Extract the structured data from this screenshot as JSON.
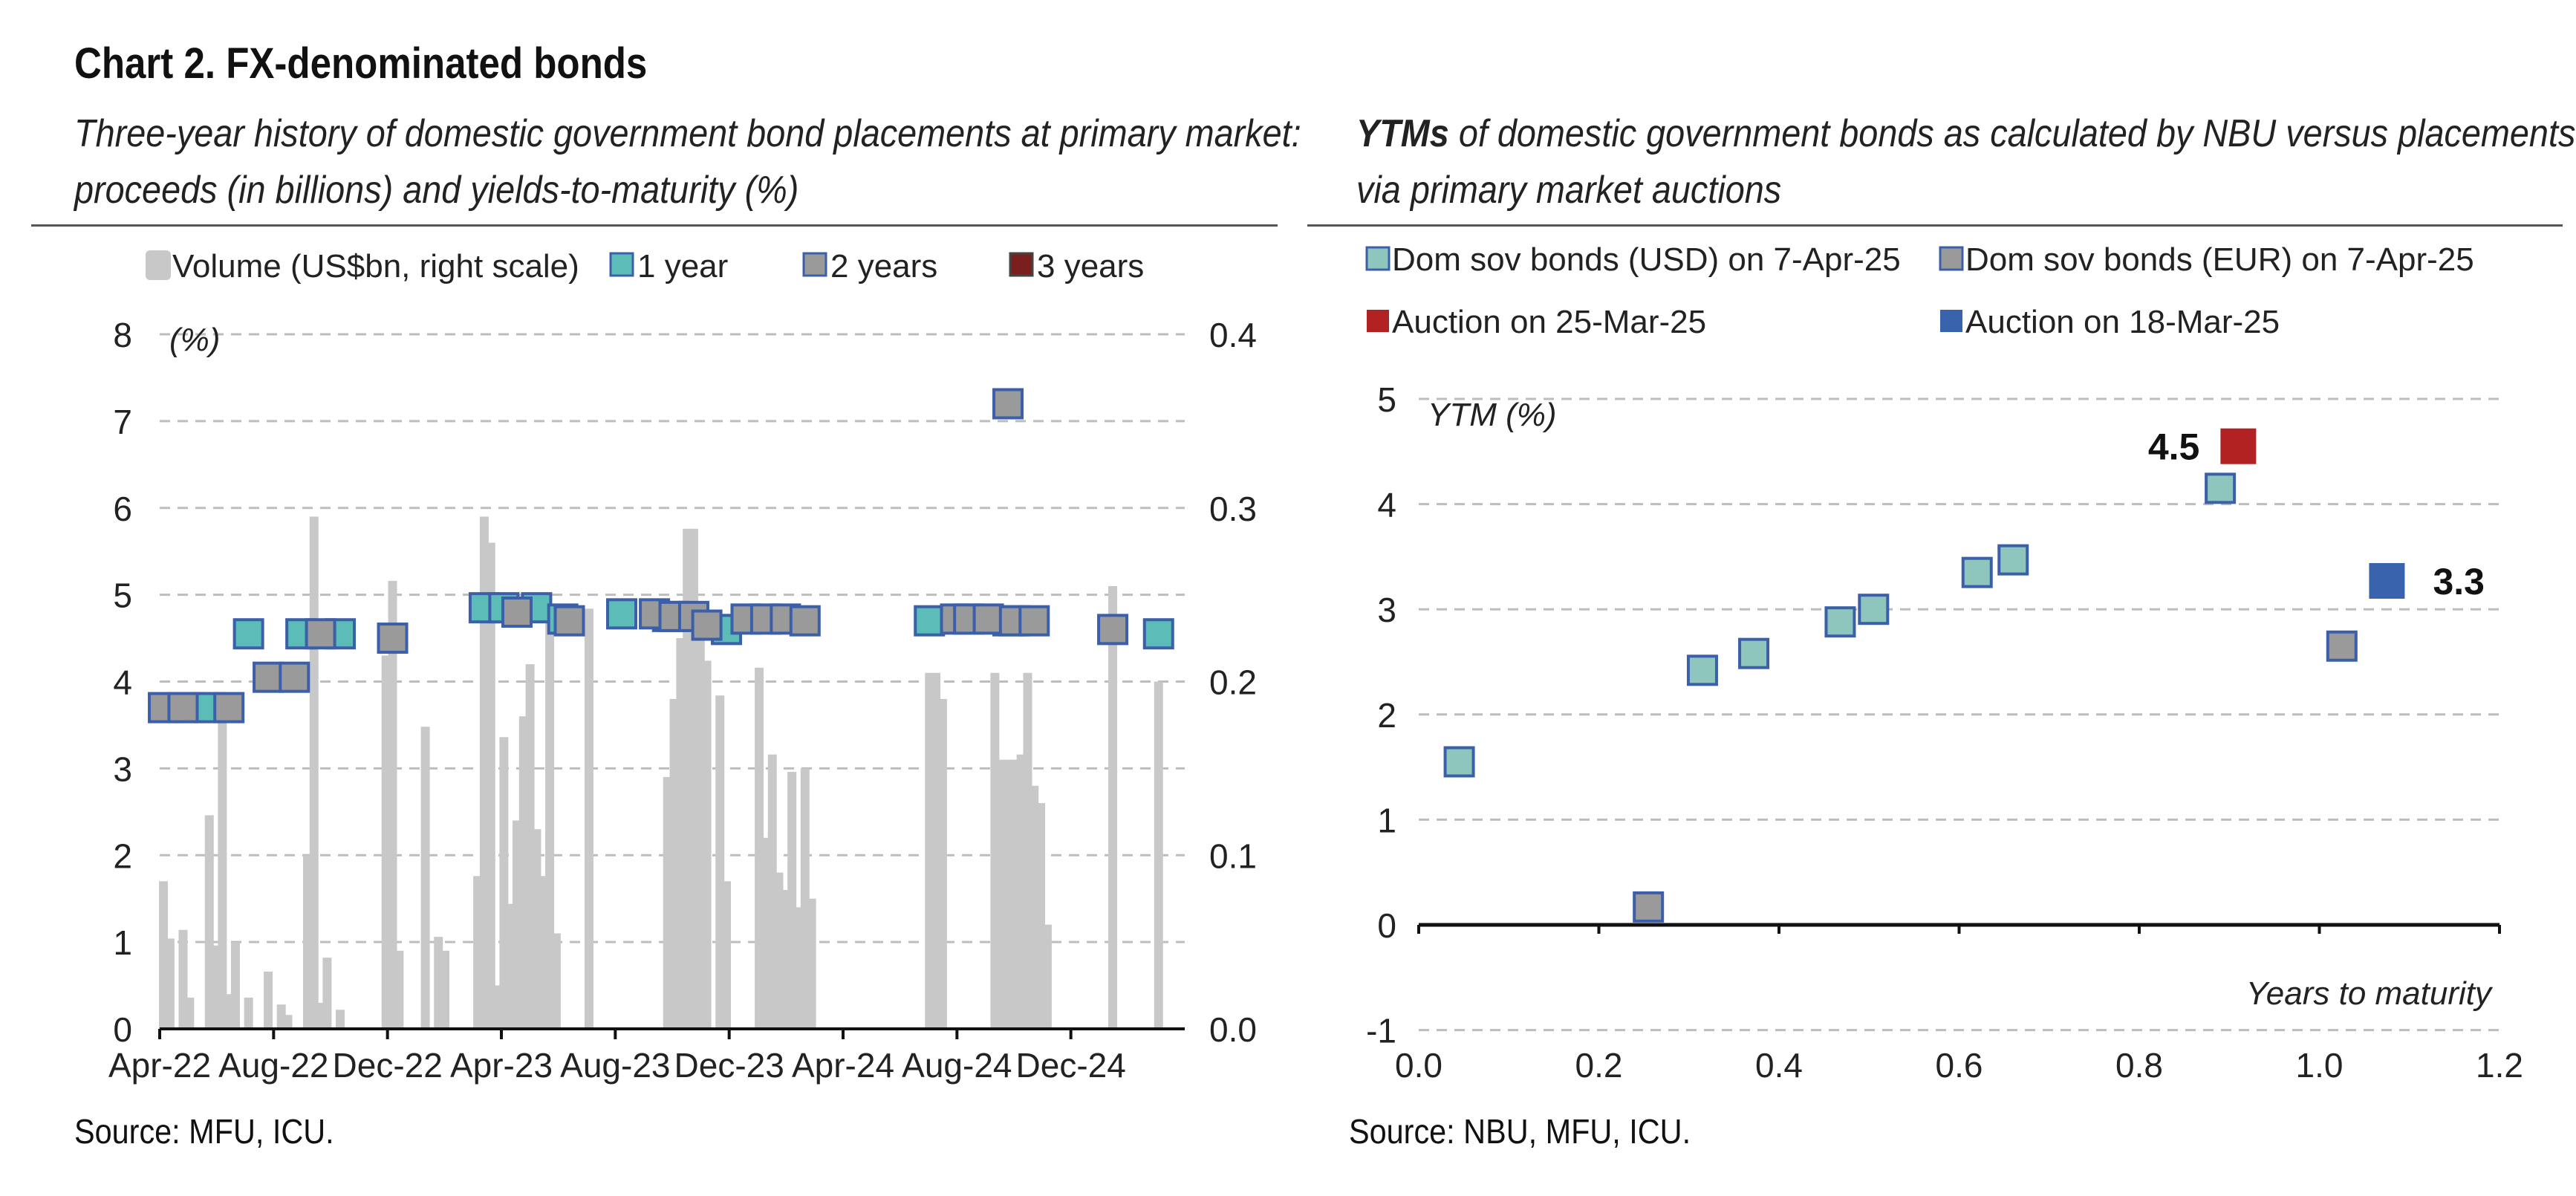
{
  "title": "Chart 2. FX-denominated bonds",
  "left_panel": {
    "subtitle": "Three-year history of domestic government bond placements at primary market: proceeds (in billions) and yields-to-maturity (%)",
    "source": "Source: MFU, ICU."
  },
  "right_panel": {
    "subtitle_bold": "YTMs",
    "subtitle_rest": " of domestic government bonds as calculated by NBU versus placements via primary market auctions",
    "source": "Source: NBU, MFU, ICU."
  },
  "colors": {
    "volume": "#c8c8c8",
    "one_year": "#5bbcb8",
    "two_years": "#9a9a9a",
    "three_years": "#7a1e1e",
    "marker_border": "#3b5fa8",
    "usd": "#8ec5bd",
    "eur": "#9a9a9a",
    "auction_mar25": "#b22222",
    "auction_mar18": "#3a63ad"
  },
  "chart_data": [
    {
      "type": "bar",
      "subtype": "bar+scatter (dual axis)",
      "x_tick_labels": [
        "Apr-22",
        "Aug-22",
        "Dec-22",
        "Apr-23",
        "Aug-23",
        "Dec-23",
        "Apr-24",
        "Aug-24",
        "Dec-24"
      ],
      "x_range_months": [
        "2022-04",
        "2025-04"
      ],
      "ylabel_left": "(%)",
      "ylim_left": [
        0,
        8
      ],
      "yticks_left": [
        0,
        1,
        2,
        3,
        4,
        5,
        6,
        7,
        8
      ],
      "ylim_right": [
        0.0,
        0.4
      ],
      "yticks_right": [
        "0.0",
        "0.1",
        "0.2",
        "0.3",
        "0.4"
      ],
      "grid": true,
      "legend_position": "top",
      "legend": [
        {
          "key": "volume",
          "label": "Volume (US$bn, right scale)"
        },
        {
          "key": "one_year",
          "label": "1 year"
        },
        {
          "key": "two_years",
          "label": "2 years"
        },
        {
          "key": "three_years",
          "label": "3 years"
        }
      ],
      "volume_bars": [
        {
          "date": "2022-04-05",
          "value": 0.085
        },
        {
          "date": "2022-04-12",
          "value": 0.052
        },
        {
          "date": "2022-04-26",
          "value": 0.057
        },
        {
          "date": "2022-05-03",
          "value": 0.018
        },
        {
          "date": "2022-05-24",
          "value": 0.123
        },
        {
          "date": "2022-05-31",
          "value": 0.048
        },
        {
          "date": "2022-06-07",
          "value": 0.188
        },
        {
          "date": "2022-06-14",
          "value": 0.02
        },
        {
          "date": "2022-06-21",
          "value": 0.05
        },
        {
          "date": "2022-07-05",
          "value": 0.018
        },
        {
          "date": "2022-07-26",
          "value": 0.033
        },
        {
          "date": "2022-08-09",
          "value": 0.014
        },
        {
          "date": "2022-08-16",
          "value": 0.008
        },
        {
          "date": "2022-09-06",
          "value": 0.1
        },
        {
          "date": "2022-09-13",
          "value": 0.295
        },
        {
          "date": "2022-09-20",
          "value": 0.015
        },
        {
          "date": "2022-09-27",
          "value": 0.041
        },
        {
          "date": "2022-10-11",
          "value": 0.011
        },
        {
          "date": "2022-11-29",
          "value": 0.215
        },
        {
          "date": "2022-12-06",
          "value": 0.258
        },
        {
          "date": "2022-12-13",
          "value": 0.045
        },
        {
          "date": "2023-01-10",
          "value": 0.174
        },
        {
          "date": "2023-01-24",
          "value": 0.053
        },
        {
          "date": "2023-01-31",
          "value": 0.045
        },
        {
          "date": "2023-03-07",
          "value": 0.088
        },
        {
          "date": "2023-03-14",
          "value": 0.295
        },
        {
          "date": "2023-03-21",
          "value": 0.28
        },
        {
          "date": "2023-03-28",
          "value": 0.025
        },
        {
          "date": "2023-04-04",
          "value": 0.168
        },
        {
          "date": "2023-04-11",
          "value": 0.072
        },
        {
          "date": "2023-04-18",
          "value": 0.12
        },
        {
          "date": "2023-04-25",
          "value": 0.18
        },
        {
          "date": "2023-05-02",
          "value": 0.21
        },
        {
          "date": "2023-05-09",
          "value": 0.115
        },
        {
          "date": "2023-05-16",
          "value": 0.088
        },
        {
          "date": "2023-05-23",
          "value": 0.245
        },
        {
          "date": "2023-05-30",
          "value": 0.055
        },
        {
          "date": "2023-07-04",
          "value": 0.242
        },
        {
          "date": "2023-09-26",
          "value": 0.145
        },
        {
          "date": "2023-10-03",
          "value": 0.19
        },
        {
          "date": "2023-10-10",
          "value": 0.225
        },
        {
          "date": "2023-10-17",
          "value": 0.288
        },
        {
          "date": "2023-10-24",
          "value": 0.288
        },
        {
          "date": "2023-10-31",
          "value": 0.245
        },
        {
          "date": "2023-11-07",
          "value": 0.212
        },
        {
          "date": "2023-11-21",
          "value": 0.192
        },
        {
          "date": "2023-11-28",
          "value": 0.085
        },
        {
          "date": "2024-01-02",
          "value": 0.208
        },
        {
          "date": "2024-01-09",
          "value": 0.11
        },
        {
          "date": "2024-01-16",
          "value": 0.158
        },
        {
          "date": "2024-01-23",
          "value": 0.09
        },
        {
          "date": "2024-01-30",
          "value": 0.08
        },
        {
          "date": "2024-02-06",
          "value": 0.148
        },
        {
          "date": "2024-02-13",
          "value": 0.07
        },
        {
          "date": "2024-02-20",
          "value": 0.15
        },
        {
          "date": "2024-02-27",
          "value": 0.075
        },
        {
          "date": "2024-07-02",
          "value": 0.205
        },
        {
          "date": "2024-07-09",
          "value": 0.205
        },
        {
          "date": "2024-07-16",
          "value": 0.19
        },
        {
          "date": "2024-09-10",
          "value": 0.205
        },
        {
          "date": "2024-09-17",
          "value": 0.155
        },
        {
          "date": "2024-09-24",
          "value": 0.155
        },
        {
          "date": "2024-10-01",
          "value": 0.155
        },
        {
          "date": "2024-10-08",
          "value": 0.158
        },
        {
          "date": "2024-10-15",
          "value": 0.205
        },
        {
          "date": "2024-10-22",
          "value": 0.14
        },
        {
          "date": "2024-10-29",
          "value": 0.13
        },
        {
          "date": "2024-11-05",
          "value": 0.06
        },
        {
          "date": "2025-01-14",
          "value": 0.255
        },
        {
          "date": "2025-03-04",
          "value": 0.2
        }
      ],
      "series": [
        {
          "name": "1 year",
          "key": "one_year",
          "points": [
            {
              "date": "2022-05-03",
              "value": 3.7
            },
            {
              "date": "2022-05-24",
              "value": 3.7
            },
            {
              "date": "2022-07-05",
              "value": 4.55
            },
            {
              "date": "2022-08-30",
              "value": 4.55
            },
            {
              "date": "2022-10-11",
              "value": 4.55
            },
            {
              "date": "2023-03-14",
              "value": 4.85
            },
            {
              "date": "2023-04-04",
              "value": 4.85
            },
            {
              "date": "2023-05-09",
              "value": 4.85
            },
            {
              "date": "2023-06-06",
              "value": 4.72
            },
            {
              "date": "2023-08-08",
              "value": 4.78
            },
            {
              "date": "2023-09-26",
              "value": 4.75
            },
            {
              "date": "2023-11-28",
              "value": 4.6
            },
            {
              "date": "2024-07-02",
              "value": 4.7
            },
            {
              "date": "2024-09-24",
              "value": 4.7
            },
            {
              "date": "2025-03-04",
              "value": 4.55
            }
          ]
        },
        {
          "name": "2 years",
          "key": "two_years",
          "points": [
            {
              "date": "2022-04-05",
              "value": 3.7
            },
            {
              "date": "2022-04-26",
              "value": 3.7
            },
            {
              "date": "2022-06-14",
              "value": 3.7
            },
            {
              "date": "2022-07-26",
              "value": 4.05
            },
            {
              "date": "2022-08-23",
              "value": 4.05
            },
            {
              "date": "2022-09-20",
              "value": 4.55
            },
            {
              "date": "2022-12-06",
              "value": 4.5
            },
            {
              "date": "2023-04-18",
              "value": 4.8
            },
            {
              "date": "2023-06-13",
              "value": 4.7
            },
            {
              "date": "2023-09-12",
              "value": 4.78
            },
            {
              "date": "2023-10-03",
              "value": 4.75
            },
            {
              "date": "2023-10-24",
              "value": 4.75
            },
            {
              "date": "2023-11-07",
              "value": 4.65
            },
            {
              "date": "2023-12-19",
              "value": 4.72
            },
            {
              "date": "2024-01-09",
              "value": 4.72
            },
            {
              "date": "2024-01-30",
              "value": 4.72
            },
            {
              "date": "2024-02-20",
              "value": 4.7
            },
            {
              "date": "2024-07-30",
              "value": 4.72
            },
            {
              "date": "2024-08-13",
              "value": 4.72
            },
            {
              "date": "2024-09-03",
              "value": 4.72
            },
            {
              "date": "2024-09-24",
              "value": 7.2
            },
            {
              "date": "2024-10-01",
              "value": 4.7
            },
            {
              "date": "2024-10-22",
              "value": 4.7
            },
            {
              "date": "2025-01-14",
              "value": 4.6
            }
          ]
        },
        {
          "name": "3 years",
          "key": "three_years",
          "points": []
        }
      ]
    },
    {
      "type": "scatter",
      "ylabel": "YTM (%)",
      "xlabel": "Years to maturity",
      "xlim": [
        0.0,
        1.2
      ],
      "xticks": [
        "0.0",
        "0.2",
        "0.4",
        "0.6",
        "0.8",
        "1.0",
        "1.2"
      ],
      "ylim": [
        -1,
        5
      ],
      "yticks": [
        "-1",
        "0",
        "1",
        "2",
        "3",
        "4",
        "5"
      ],
      "grid": true,
      "legend_position": "top",
      "legend": [
        {
          "key": "usd",
          "label": "Dom sov bonds (USD) on 7-Apr-25"
        },
        {
          "key": "eur",
          "label": "Dom sov bonds (EUR) on 7-Apr-25"
        },
        {
          "key": "auction_mar25",
          "label": "Auction on 25-Mar-25"
        },
        {
          "key": "auction_mar18",
          "label": "Auction on 18-Mar-25"
        }
      ],
      "series": [
        {
          "name": "Dom sov bonds (USD) on 7-Apr-25",
          "key": "usd",
          "points": [
            {
              "x": 0.045,
              "y": 1.55
            },
            {
              "x": 0.315,
              "y": 2.42
            },
            {
              "x": 0.372,
              "y": 2.58
            },
            {
              "x": 0.468,
              "y": 2.88
            },
            {
              "x": 0.505,
              "y": 3.0
            },
            {
              "x": 0.62,
              "y": 3.35
            },
            {
              "x": 0.66,
              "y": 3.47
            },
            {
              "x": 0.89,
              "y": 4.15
            }
          ]
        },
        {
          "name": "Dom sov bonds (EUR) on 7-Apr-25",
          "key": "eur",
          "points": [
            {
              "x": 0.255,
              "y": 0.17
            },
            {
              "x": 1.025,
              "y": 2.65
            }
          ]
        },
        {
          "name": "Auction on 25-Mar-25",
          "key": "auction_mar25",
          "points": [
            {
              "x": 0.91,
              "y": 4.55,
              "label": "4.5"
            }
          ]
        },
        {
          "name": "Auction on 18-Mar-25",
          "key": "auction_mar18",
          "points": [
            {
              "x": 1.075,
              "y": 3.27,
              "label": "3.3"
            }
          ]
        }
      ]
    }
  ]
}
